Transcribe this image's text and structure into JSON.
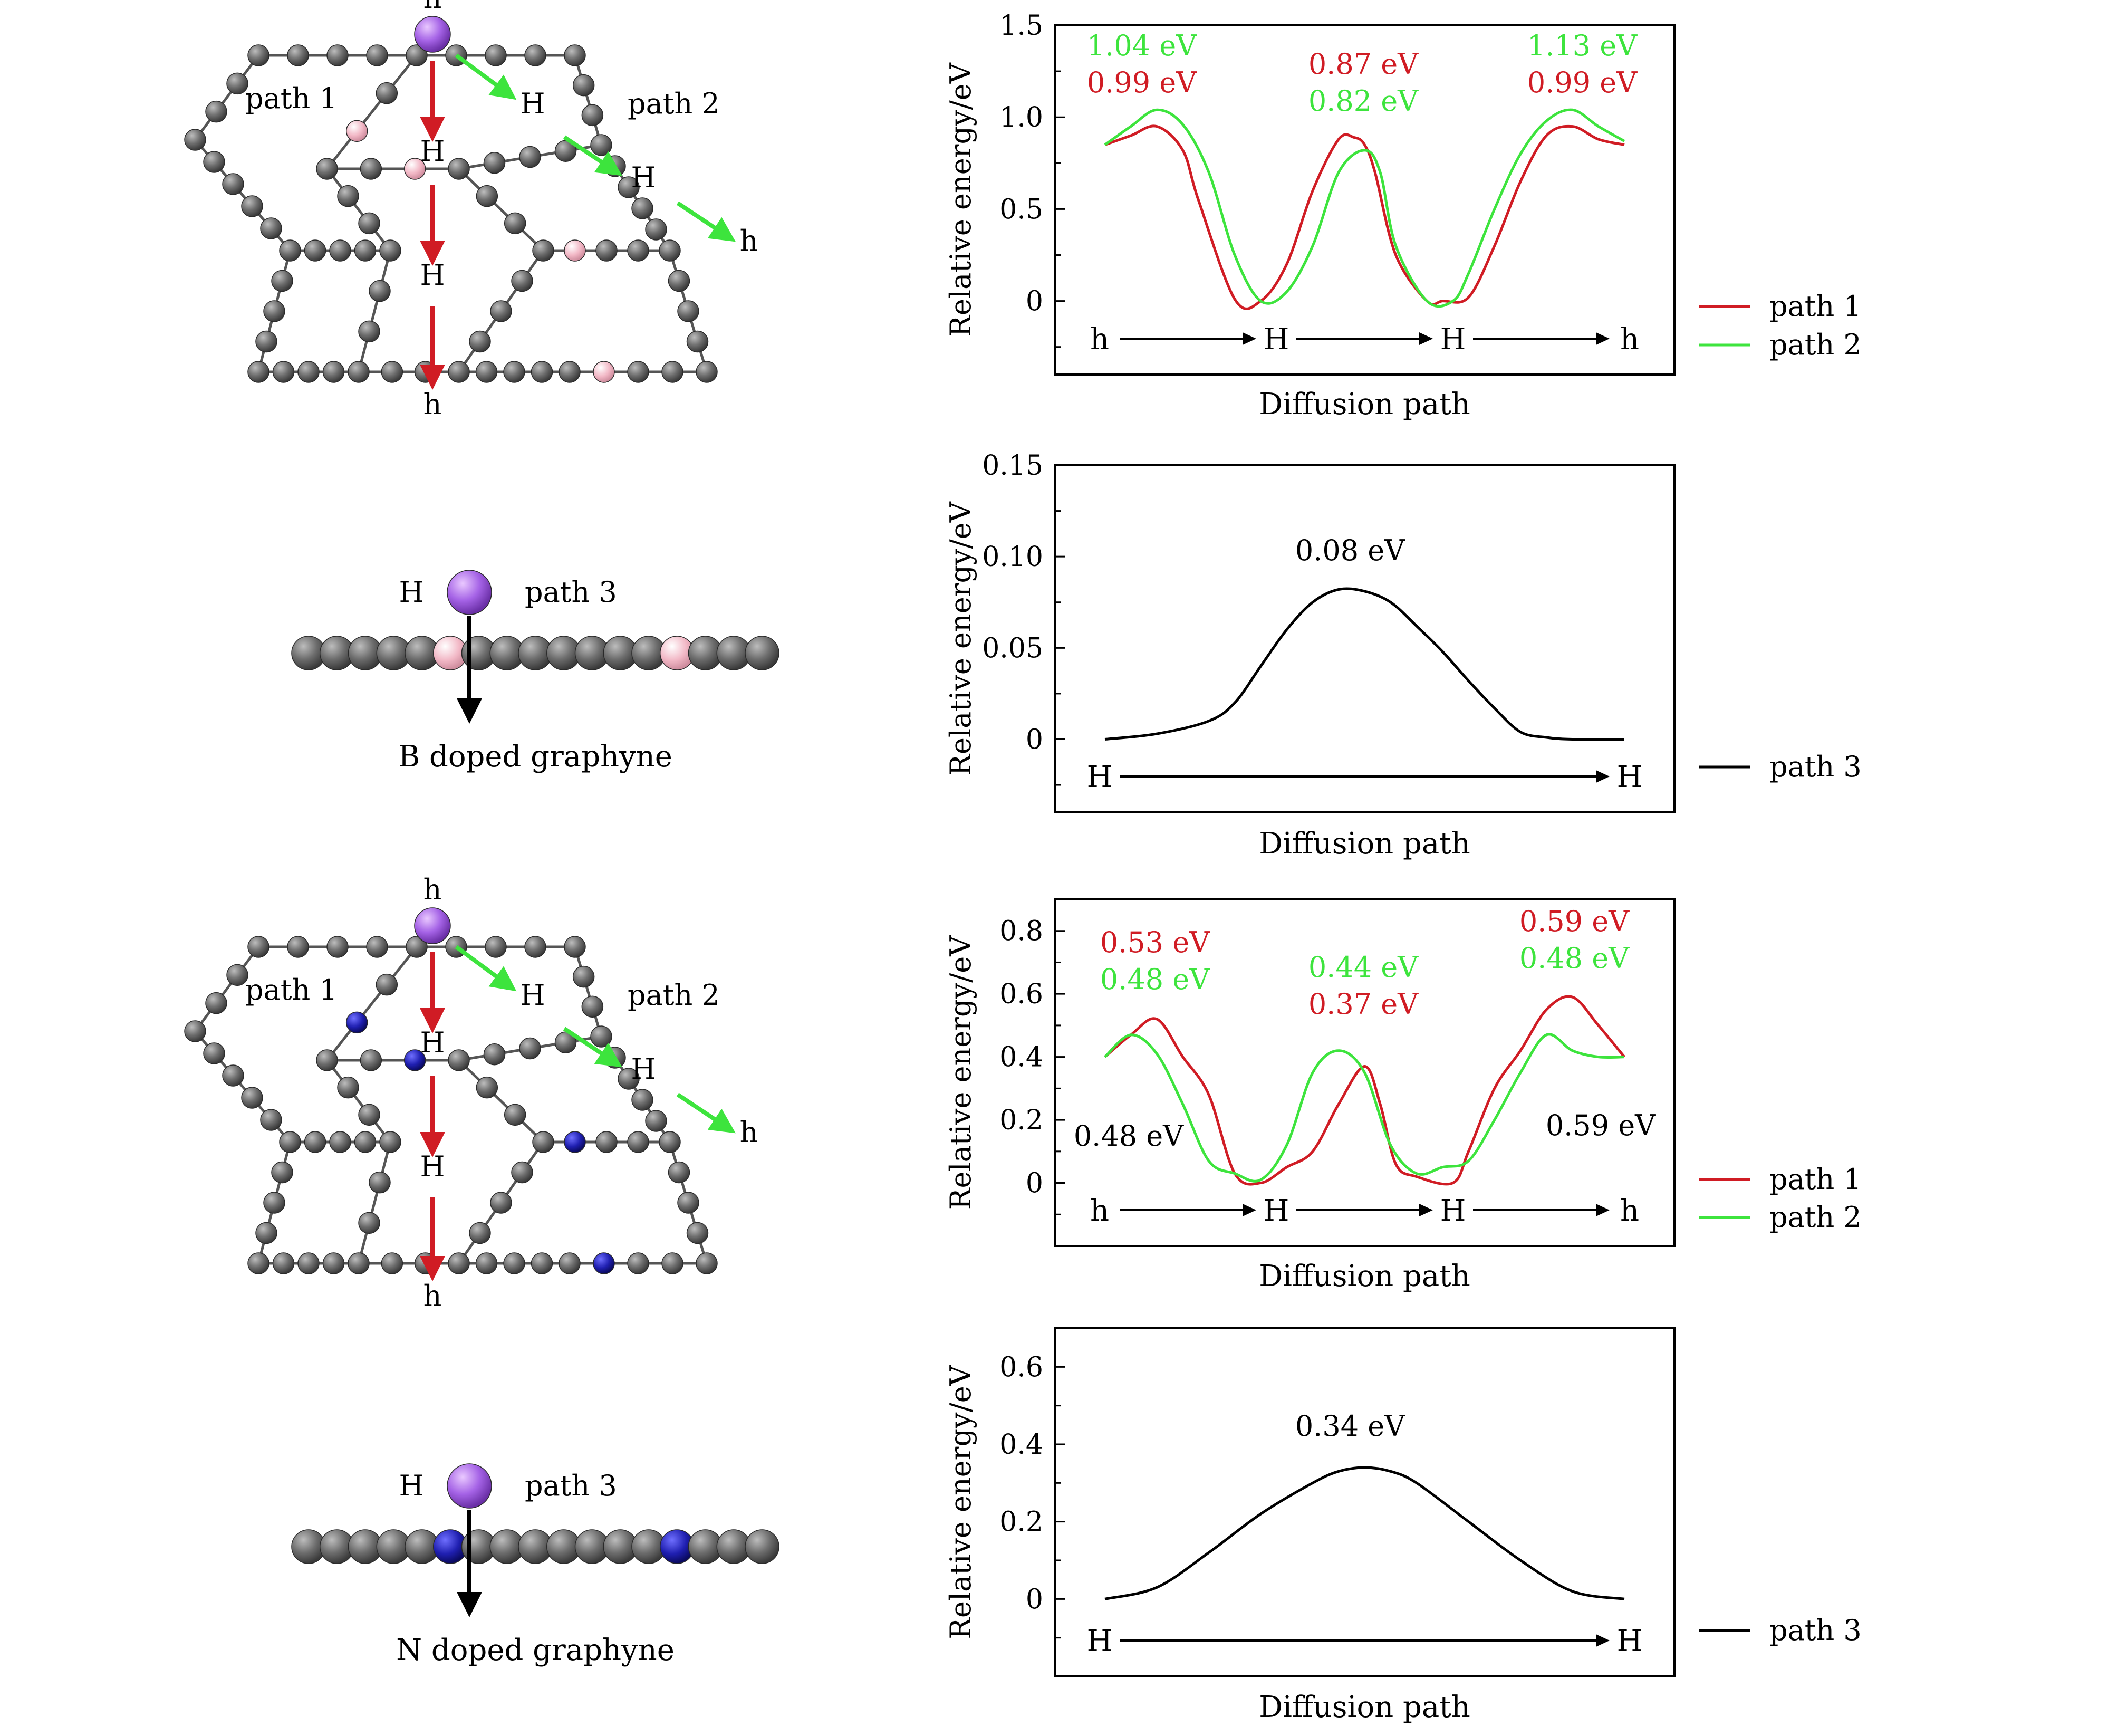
{
  "structures": [
    {
      "id": "b-top",
      "site_labels": [
        "h",
        "H",
        "H",
        "h",
        "H",
        "H",
        "h"
      ],
      "path_labels": [
        "path 1",
        "path 2"
      ],
      "dopant_color": "#f2b8c6"
    },
    {
      "id": "b-side",
      "site_label": "H",
      "path_label": "path 3",
      "caption": "B doped graphyne",
      "dopant_color": "#f2b8c6"
    },
    {
      "id": "n-top",
      "site_labels": [
        "h",
        "H",
        "H",
        "h",
        "H",
        "H",
        "h"
      ],
      "path_labels": [
        "path 1",
        "path 2"
      ],
      "dopant_color": "#1f1fb0"
    },
    {
      "id": "n-side",
      "site_label": "H",
      "path_label": "path 3",
      "caption": "N doped graphyne",
      "dopant_color": "#1f1fb0"
    }
  ],
  "chart_data": [
    {
      "type": "line",
      "xlabel": "Diffusion path",
      "ylabel": "Relative energy/eV",
      "ylim": [
        -0.4,
        1.5
      ],
      "yticks": [
        1.5,
        1.0,
        0.5,
        0
      ],
      "ytick_labels": [
        "1.5",
        "1.0",
        "0.5",
        "0"
      ],
      "path_labels": [
        "h",
        "H",
        "H",
        "h"
      ],
      "series": [
        {
          "name": "path 1",
          "color": "#d01c24",
          "x": [
            0,
            0.05,
            0.1,
            0.15,
            0.18,
            0.25,
            0.3,
            0.35,
            0.4,
            0.45,
            0.48,
            0.5,
            0.52,
            0.56,
            0.62,
            0.65,
            0.7,
            0.75,
            0.8,
            0.85,
            0.9,
            0.95,
            1
          ],
          "values": [
            0.85,
            0.9,
            0.95,
            0.82,
            0.55,
            0.01,
            0,
            0.2,
            0.6,
            0.88,
            0.89,
            0.85,
            0.7,
            0.25,
            0,
            0,
            0.02,
            0.3,
            0.65,
            0.9,
            0.95,
            0.88,
            0.85
          ]
        },
        {
          "name": "path 2",
          "color": "#3de43d",
          "x": [
            0,
            0.05,
            0.1,
            0.15,
            0.2,
            0.25,
            0.3,
            0.35,
            0.4,
            0.45,
            0.5,
            0.53,
            0.56,
            0.62,
            0.67,
            0.7,
            0.75,
            0.8,
            0.85,
            0.9,
            0.95,
            1
          ],
          "values": [
            0.85,
            0.95,
            1.04,
            0.96,
            0.7,
            0.25,
            0,
            0.05,
            0.3,
            0.7,
            0.82,
            0.7,
            0.3,
            0,
            0,
            0.15,
            0.5,
            0.8,
            0.98,
            1.04,
            0.95,
            0.87
          ]
        }
      ],
      "annotations": [
        {
          "text": "1.04 eV",
          "color": "#3de43d"
        },
        {
          "text": "0.99 eV",
          "color": "#d01c24"
        },
        {
          "text": "0.87 eV",
          "color": "#d01c24"
        },
        {
          "text": "0.82 eV",
          "color": "#3de43d"
        },
        {
          "text": "1.13 eV",
          "color": "#3de43d"
        },
        {
          "text": "0.99 eV",
          "color": "#d01c24"
        }
      ]
    },
    {
      "type": "line",
      "xlabel": "Diffusion path",
      "ylabel": "Relative energy/eV",
      "ylim": [
        -0.04,
        0.15
      ],
      "yticks": [
        0.15,
        0.1,
        0.05,
        0
      ],
      "ytick_labels": [
        "0.15",
        "0.10",
        "0.05",
        "0"
      ],
      "path_labels": [
        "H",
        "H"
      ],
      "series": [
        {
          "name": "path 3",
          "color": "#000000",
          "x": [
            0,
            0.1,
            0.2,
            0.25,
            0.3,
            0.35,
            0.4,
            0.45,
            0.5,
            0.55,
            0.6,
            0.65,
            0.7,
            0.75,
            0.8,
            0.85,
            0.9,
            1
          ],
          "values": [
            0,
            0.003,
            0.01,
            0.02,
            0.04,
            0.06,
            0.075,
            0.082,
            0.081,
            0.075,
            0.062,
            0.048,
            0.032,
            0.017,
            0.004,
            0.001,
            0,
            0
          ]
        }
      ],
      "annotations": [
        {
          "text": "0.08 eV",
          "color": "#000000"
        }
      ]
    },
    {
      "type": "line",
      "xlabel": "Diffusion path",
      "ylabel": "Relative energy/eV",
      "ylim": [
        -0.2,
        0.9
      ],
      "yticks": [
        0.8,
        0.6,
        0.4,
        0.2,
        0
      ],
      "ytick_labels": [
        "0.8",
        "0.6",
        "0.4",
        "0.2",
        "0"
      ],
      "path_labels": [
        "h",
        "H",
        "H",
        "h"
      ],
      "series": [
        {
          "name": "path 1",
          "color": "#d01c24",
          "x": [
            0,
            0.05,
            0.1,
            0.15,
            0.2,
            0.25,
            0.3,
            0.35,
            0.4,
            0.45,
            0.5,
            0.53,
            0.56,
            0.6,
            0.67,
            0.7,
            0.75,
            0.8,
            0.85,
            0.9,
            0.95,
            1
          ],
          "values": [
            0.4,
            0.47,
            0.52,
            0.4,
            0.28,
            0.03,
            0,
            0.05,
            0.1,
            0.25,
            0.37,
            0.25,
            0.06,
            0.02,
            0,
            0.1,
            0.3,
            0.42,
            0.55,
            0.59,
            0.5,
            0.4
          ]
        },
        {
          "name": "path 2",
          "color": "#3de43d",
          "x": [
            0,
            0.05,
            0.1,
            0.15,
            0.2,
            0.25,
            0.3,
            0.35,
            0.4,
            0.45,
            0.5,
            0.55,
            0.6,
            0.65,
            0.7,
            0.75,
            0.8,
            0.85,
            0.9,
            0.95,
            1
          ],
          "values": [
            0.4,
            0.47,
            0.41,
            0.25,
            0.07,
            0.03,
            0.01,
            0.12,
            0.35,
            0.42,
            0.35,
            0.12,
            0.03,
            0.05,
            0.07,
            0.2,
            0.35,
            0.47,
            0.42,
            0.4,
            0.4
          ]
        }
      ],
      "annotations": [
        {
          "text": "0.53 eV",
          "color": "#d01c24"
        },
        {
          "text": "0.48 eV",
          "color": "#3de43d"
        },
        {
          "text": "0.44 eV",
          "color": "#3de43d"
        },
        {
          "text": "0.37 eV",
          "color": "#d01c24"
        },
        {
          "text": "0.59 eV",
          "color": "#d01c24"
        },
        {
          "text": "0.48 eV",
          "color": "#3de43d"
        },
        {
          "text": "0.48 eV",
          "color": "#000000"
        },
        {
          "text": "0.59 eV",
          "color": "#000000"
        }
      ]
    },
    {
      "type": "line",
      "xlabel": "Diffusion path",
      "ylabel": "Relative energy/eV",
      "ylim": [
        -0.2,
        0.7
      ],
      "yticks": [
        0.6,
        0.4,
        0.2,
        0
      ],
      "ytick_labels": [
        "0.6",
        "0.4",
        "0.2",
        "0"
      ],
      "path_labels": [
        "H",
        "H"
      ],
      "series": [
        {
          "name": "path 3",
          "color": "#000000",
          "x": [
            0,
            0.1,
            0.2,
            0.3,
            0.4,
            0.45,
            0.5,
            0.55,
            0.6,
            0.7,
            0.8,
            0.9,
            1
          ],
          "values": [
            0,
            0.03,
            0.12,
            0.22,
            0.3,
            0.33,
            0.34,
            0.33,
            0.3,
            0.2,
            0.1,
            0.02,
            0
          ]
        }
      ],
      "annotations": [
        {
          "text": "0.34 eV",
          "color": "#000000"
        }
      ]
    }
  ]
}
